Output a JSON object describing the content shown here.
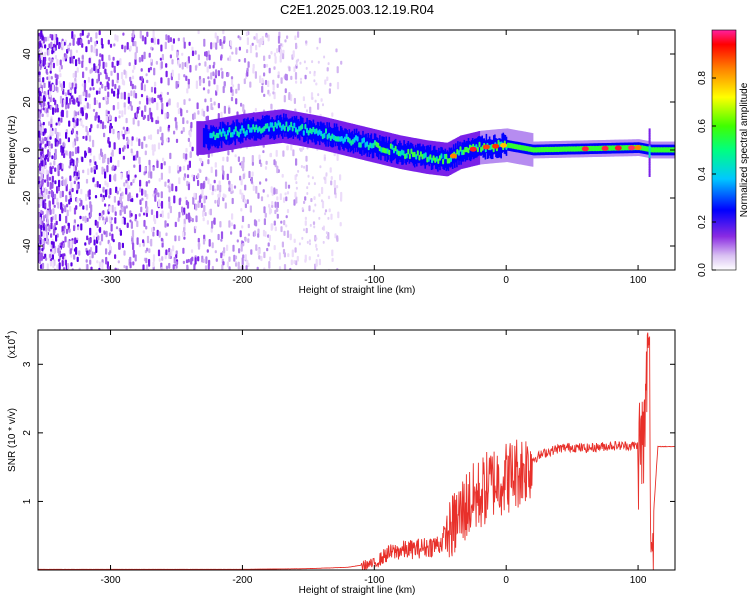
{
  "figure_title": "C2E1.2025.003.12.19.R04",
  "chart_data": [
    {
      "type": "heatmap",
      "xlabel": "Height of straight line (km)",
      "ylabel": "Frequency (Hz)",
      "xlim": [
        -355,
        128
      ],
      "ylim": [
        -50,
        50
      ],
      "xticks": [
        -300,
        -200,
        -100,
        0,
        100
      ],
      "yticks": [
        -40,
        -20,
        0,
        20,
        40
      ],
      "grid": false,
      "colorbar": {
        "label": "Normalized spectral amplitude",
        "range": [
          0,
          1
        ],
        "ticks": [
          0.0,
          0.2,
          0.4,
          0.6,
          0.8
        ],
        "tick_labels": [
          "0.0",
          "0.2",
          "0.4",
          "0.6",
          "0.8"
        ],
        "colormap": [
          "#ffffff",
          "#e6d3f5",
          "#8f3ff0",
          "#5a00e6",
          "#0000ff",
          "#00e0e0",
          "#00ff00",
          "#ffff00",
          "#ff8000",
          "#ff0000",
          "#ff00a0"
        ]
      },
      "ridge": {
        "description_points_x": [
          -230,
          -200,
          -170,
          -140,
          -110,
          -80,
          -60,
          -45,
          -35,
          -20,
          0,
          20,
          60,
          100,
          110,
          128
        ],
        "description_points_y": [
          5,
          8,
          10,
          7,
          3,
          -1,
          -3,
          -4,
          -1,
          1,
          2,
          0,
          0.5,
          1,
          0,
          0
        ]
      }
    },
    {
      "type": "line",
      "xlabel": "Height of straight line (km)",
      "ylabel": "SNR (10 * v/v)",
      "scale_label": "(x10",
      "scale_exponent": "4",
      "xlim": [
        -355,
        128
      ],
      "ylim": [
        0,
        3.5
      ],
      "xticks": [
        -300,
        -200,
        -100,
        0,
        100
      ],
      "yticks": [
        1,
        2,
        3
      ],
      "grid": false,
      "color": "#e8302a",
      "series": [
        {
          "x": [
            -355,
            -300,
            -250,
            -200,
            -150,
            -120,
            -100,
            -90,
            -80,
            -70,
            -60,
            -50,
            -40,
            -30,
            -20,
            -10,
            0,
            10,
            20,
            30,
            40,
            50,
            60,
            70,
            80,
            90,
            100,
            105,
            108,
            110,
            115,
            128
          ],
          "values": [
            0.01,
            0.01,
            0.01,
            0.01,
            0.02,
            0.04,
            0.1,
            0.25,
            0.3,
            0.32,
            0.35,
            0.4,
            0.7,
            1.0,
            1.15,
            1.35,
            1.4,
            1.5,
            1.62,
            1.72,
            1.78,
            1.8,
            1.78,
            1.8,
            1.82,
            1.82,
            1.82,
            2.0,
            3.5,
            0.3,
            1.8,
            1.8
          ]
        }
      ]
    }
  ]
}
